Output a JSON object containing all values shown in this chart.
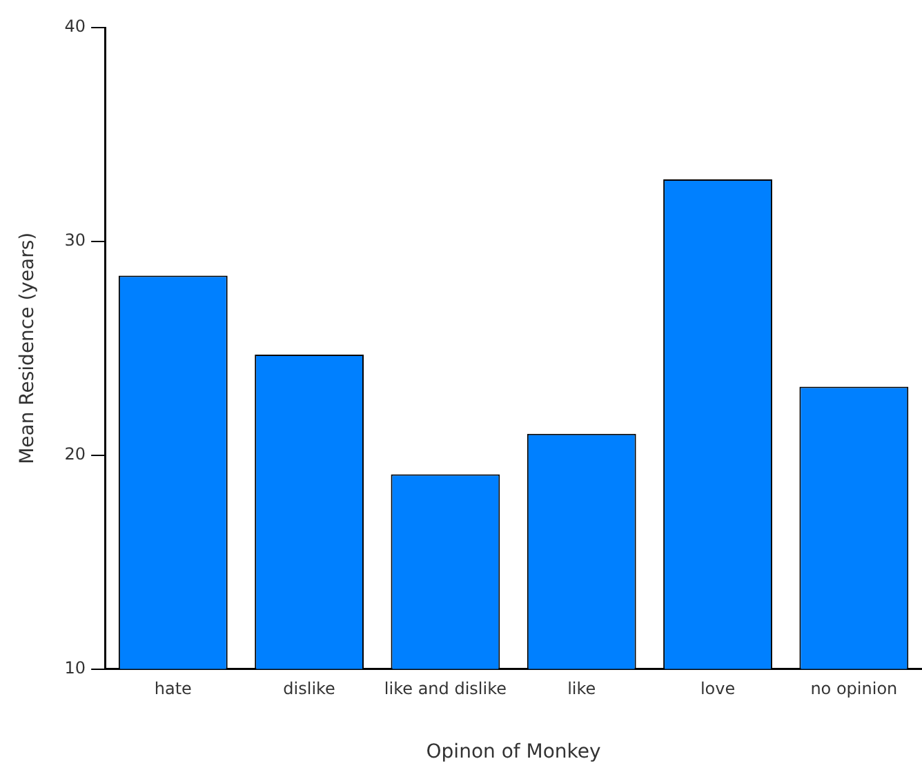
{
  "chart_data": {
    "type": "bar",
    "xlabel": "Opinon of Monkey",
    "ylabel": "Mean Residence (years)",
    "categories": [
      "hate",
      "dislike",
      "like and dislike",
      "like",
      "love",
      "no opinion"
    ],
    "values": [
      28.4,
      24.7,
      19.1,
      21.0,
      32.9,
      23.2
    ],
    "color": "#0080ff",
    "ylim": [
      10,
      40
    ],
    "yticks": [
      10,
      20,
      30,
      40
    ],
    "grid": false,
    "legend": false
  }
}
